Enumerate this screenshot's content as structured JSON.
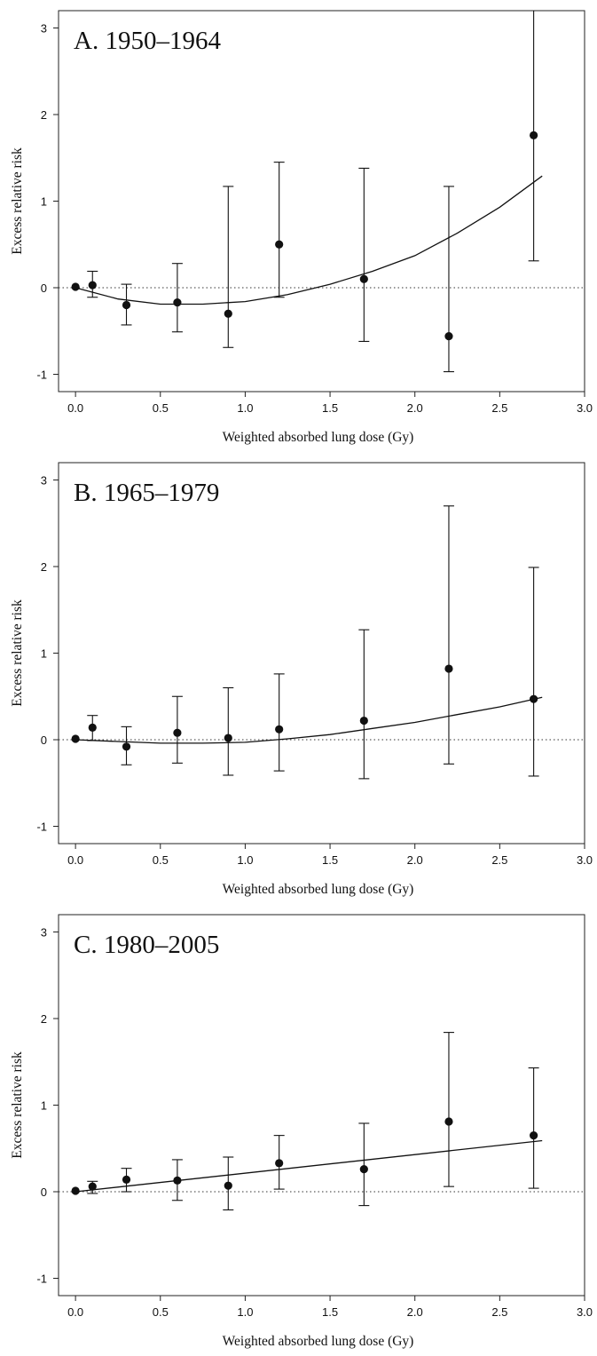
{
  "chart_data": [
    {
      "type": "scatter",
      "title": "A. 1950–1964",
      "xlabel": "Weighted absorbed lung dose (Gy)",
      "ylabel": "Excess relative risk",
      "xlim": [
        -0.1,
        3.0
      ],
      "ylim": [
        -1.2,
        3.2
      ],
      "xticks": [
        "0.0",
        "0.5",
        "1.0",
        "1.5",
        "2.0",
        "2.5",
        "3.0"
      ],
      "yticks": [
        "-1",
        "0",
        "1",
        "2",
        "3"
      ],
      "reference_line": {
        "y": 0,
        "style": "dotted"
      },
      "points": [
        {
          "x": 0.0,
          "y": 0.01,
          "lower": null,
          "upper": null
        },
        {
          "x": 0.1,
          "y": 0.03,
          "lower": -0.11,
          "upper": 0.19
        },
        {
          "x": 0.3,
          "y": -0.2,
          "lower": -0.43,
          "upper": 0.04
        },
        {
          "x": 0.6,
          "y": -0.17,
          "lower": -0.51,
          "upper": 0.28
        },
        {
          "x": 0.9,
          "y": -0.3,
          "lower": -0.69,
          "upper": 1.17
        },
        {
          "x": 1.2,
          "y": 0.5,
          "lower": -0.11,
          "upper": 1.45
        },
        {
          "x": 1.7,
          "y": 0.1,
          "lower": -0.62,
          "upper": 1.38
        },
        {
          "x": 2.2,
          "y": -0.56,
          "lower": -0.97,
          "upper": 1.17
        },
        {
          "x": 2.7,
          "y": 1.76,
          "lower": 0.31,
          "upper": 3.2
        }
      ],
      "fit_curve": {
        "x": [
          0,
          0.25,
          0.5,
          0.75,
          1.0,
          1.25,
          1.5,
          1.75,
          2.0,
          2.25,
          2.5,
          2.75
        ],
        "y": [
          0,
          -0.13,
          -0.19,
          -0.19,
          -0.16,
          -0.08,
          0.04,
          0.19,
          0.37,
          0.63,
          0.93,
          1.29
        ]
      }
    },
    {
      "type": "scatter",
      "title": "B. 1965–1979",
      "xlabel": "Weighted absorbed lung dose (Gy)",
      "ylabel": "Excess relative risk",
      "xlim": [
        -0.1,
        3.0
      ],
      "ylim": [
        -1.2,
        3.2
      ],
      "xticks": [
        "0.0",
        "0.5",
        "1.0",
        "1.5",
        "2.0",
        "2.5",
        "3.0"
      ],
      "yticks": [
        "-1",
        "0",
        "1",
        "2",
        "3"
      ],
      "reference_line": {
        "y": 0,
        "style": "dotted"
      },
      "points": [
        {
          "x": 0.0,
          "y": 0.01,
          "lower": null,
          "upper": null
        },
        {
          "x": 0.1,
          "y": 0.14,
          "lower": -0.01,
          "upper": 0.28
        },
        {
          "x": 0.3,
          "y": -0.08,
          "lower": -0.29,
          "upper": 0.15
        },
        {
          "x": 0.6,
          "y": 0.08,
          "lower": -0.27,
          "upper": 0.5
        },
        {
          "x": 0.9,
          "y": 0.02,
          "lower": -0.41,
          "upper": 0.6
        },
        {
          "x": 1.2,
          "y": 0.12,
          "lower": -0.36,
          "upper": 0.76
        },
        {
          "x": 1.7,
          "y": 0.22,
          "lower": -0.45,
          "upper": 1.27
        },
        {
          "x": 2.2,
          "y": 0.82,
          "lower": -0.28,
          "upper": 2.7
        },
        {
          "x": 2.7,
          "y": 0.47,
          "lower": -0.42,
          "upper": 1.99
        }
      ],
      "fit_curve": {
        "x": [
          0,
          0.25,
          0.5,
          0.75,
          1.0,
          1.25,
          1.5,
          1.75,
          2.0,
          2.25,
          2.5,
          2.75
        ],
        "y": [
          0,
          -0.02,
          -0.04,
          -0.04,
          -0.03,
          0.01,
          0.06,
          0.13,
          0.2,
          0.29,
          0.38,
          0.49
        ]
      }
    },
    {
      "type": "scatter",
      "title": "C. 1980–2005",
      "xlabel": "Weighted absorbed lung dose (Gy)",
      "ylabel": "Excess relative risk",
      "xlim": [
        -0.1,
        3.0
      ],
      "ylim": [
        -1.2,
        3.2
      ],
      "xticks": [
        "0.0",
        "0.5",
        "1.0",
        "1.5",
        "2.0",
        "2.5",
        "3.0"
      ],
      "yticks": [
        "-1",
        "0",
        "1",
        "2",
        "3"
      ],
      "reference_line": {
        "y": 0,
        "style": "dotted"
      },
      "points": [
        {
          "x": 0.0,
          "y": 0.01,
          "lower": null,
          "upper": null
        },
        {
          "x": 0.1,
          "y": 0.06,
          "lower": -0.02,
          "upper": 0.12
        },
        {
          "x": 0.3,
          "y": 0.14,
          "lower": 0.0,
          "upper": 0.27
        },
        {
          "x": 0.6,
          "y": 0.13,
          "lower": -0.1,
          "upper": 0.37
        },
        {
          "x": 0.9,
          "y": 0.07,
          "lower": -0.21,
          "upper": 0.4
        },
        {
          "x": 1.2,
          "y": 0.33,
          "lower": 0.03,
          "upper": 0.65
        },
        {
          "x": 1.7,
          "y": 0.26,
          "lower": -0.16,
          "upper": 0.79
        },
        {
          "x": 2.2,
          "y": 0.81,
          "lower": 0.06,
          "upper": 1.84
        },
        {
          "x": 2.7,
          "y": 0.65,
          "lower": 0.04,
          "upper": 1.43
        }
      ],
      "fit_curve": {
        "x": [
          0,
          2.75
        ],
        "y": [
          0,
          0.59
        ]
      }
    }
  ]
}
